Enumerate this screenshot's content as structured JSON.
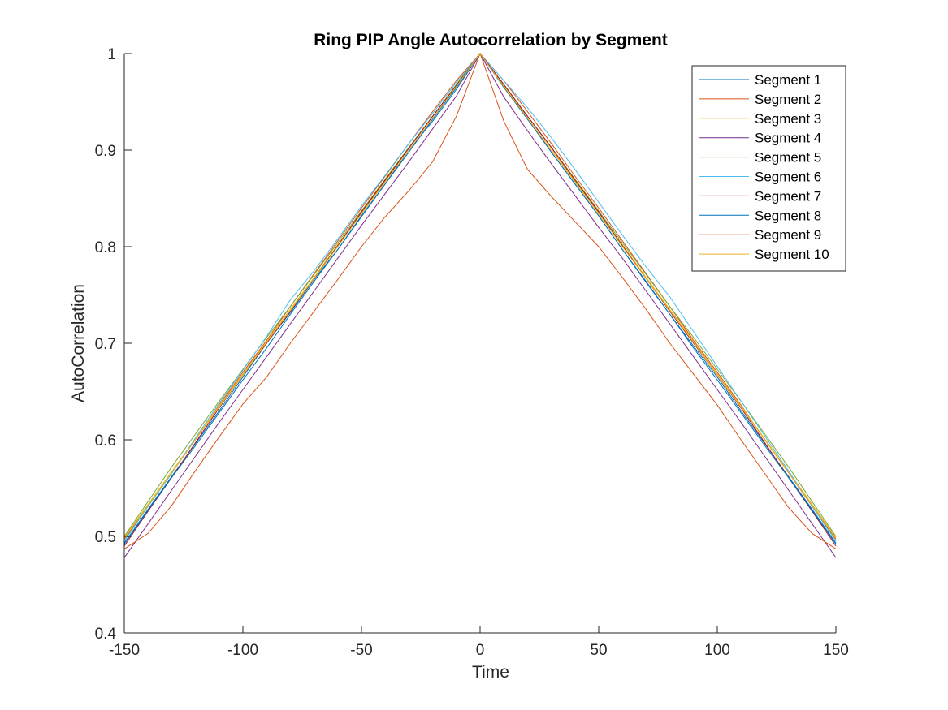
{
  "chart_data": {
    "type": "line",
    "title": "Ring PIP Angle Autocorrelation by Segment",
    "xlabel": "Time",
    "ylabel": "AutoCorrelation",
    "xlim": [
      -150,
      150
    ],
    "ylim": [
      0.4,
      1
    ],
    "xticks": [
      -150,
      -100,
      -50,
      0,
      50,
      100,
      150
    ],
    "xtick_labels": [
      "-150",
      "-100",
      "-50",
      "0",
      "50",
      "100",
      "150"
    ],
    "yticks": [
      0.4,
      0.5,
      0.6,
      0.7,
      0.8,
      0.9,
      1
    ],
    "ytick_labels": [
      "0.4",
      "0.5",
      "0.6",
      "0.7",
      "0.8",
      "0.9",
      "1"
    ],
    "grid": false,
    "legend_position": "top-right",
    "x": [
      -150,
      -140,
      -130,
      -120,
      -110,
      -100,
      -90,
      -80,
      -70,
      -60,
      -50,
      -40,
      -30,
      -20,
      -10,
      0,
      10,
      20,
      30,
      40,
      50,
      60,
      70,
      80,
      90,
      100,
      110,
      120,
      130,
      140,
      150
    ],
    "series": [
      {
        "name": "Segment 1",
        "color": "#0072BD",
        "values": [
          0.493,
          0.528,
          0.562,
          0.596,
          0.63,
          0.665,
          0.7,
          0.732,
          0.766,
          0.797,
          0.831,
          0.865,
          0.9,
          0.93,
          0.963,
          1.0,
          0.968,
          0.933,
          0.898,
          0.865,
          0.832,
          0.797,
          0.763,
          0.73,
          0.697,
          0.665,
          0.63,
          0.596,
          0.562,
          0.528,
          0.493
        ]
      },
      {
        "name": "Segment 2",
        "color": "#D95319",
        "values": [
          0.497,
          0.531,
          0.566,
          0.6,
          0.636,
          0.67,
          0.703,
          0.738,
          0.772,
          0.806,
          0.84,
          0.873,
          0.907,
          0.94,
          0.972,
          1.0,
          0.972,
          0.94,
          0.907,
          0.873,
          0.84,
          0.806,
          0.772,
          0.738,
          0.703,
          0.67,
          0.636,
          0.6,
          0.566,
          0.531,
          0.497
        ]
      },
      {
        "name": "Segment 3",
        "color": "#EDB120",
        "values": [
          0.499,
          0.533,
          0.567,
          0.601,
          0.635,
          0.668,
          0.702,
          0.735,
          0.768,
          0.802,
          0.835,
          0.868,
          0.902,
          0.935,
          0.967,
          1.0,
          0.967,
          0.935,
          0.902,
          0.868,
          0.835,
          0.802,
          0.768,
          0.735,
          0.702,
          0.668,
          0.635,
          0.601,
          0.567,
          0.533,
          0.499
        ]
      },
      {
        "name": "Segment 4",
        "color": "#7E2F8E",
        "values": [
          0.478,
          0.513,
          0.548,
          0.583,
          0.618,
          0.652,
          0.686,
          0.72,
          0.754,
          0.788,
          0.822,
          0.855,
          0.888,
          0.922,
          0.956,
          1.0,
          0.955,
          0.92,
          0.886,
          0.853,
          0.82,
          0.788,
          0.754,
          0.72,
          0.686,
          0.652,
          0.618,
          0.583,
          0.548,
          0.513,
          0.478
        ]
      },
      {
        "name": "Segment 5",
        "color": "#77AC30",
        "values": [
          0.5,
          0.536,
          0.572,
          0.606,
          0.64,
          0.673,
          0.706,
          0.738,
          0.771,
          0.804,
          0.837,
          0.87,
          0.903,
          0.935,
          0.968,
          1.0,
          0.968,
          0.935,
          0.903,
          0.87,
          0.837,
          0.804,
          0.771,
          0.738,
          0.706,
          0.673,
          0.64,
          0.606,
          0.572,
          0.536,
          0.5
        ]
      },
      {
        "name": "Segment 6",
        "color": "#4DBEEE",
        "values": [
          0.495,
          0.531,
          0.565,
          0.602,
          0.638,
          0.672,
          0.707,
          0.745,
          0.775,
          0.808,
          0.842,
          0.874,
          0.907,
          0.938,
          0.97,
          1.0,
          0.972,
          0.944,
          0.913,
          0.88,
          0.846,
          0.812,
          0.779,
          0.748,
          0.712,
          0.676,
          0.64,
          0.604,
          0.568,
          0.531,
          0.495
        ]
      },
      {
        "name": "Segment 7",
        "color": "#A2142F",
        "values": [
          0.49,
          0.526,
          0.561,
          0.597,
          0.633,
          0.667,
          0.7,
          0.733,
          0.767,
          0.801,
          0.836,
          0.869,
          0.902,
          0.935,
          0.967,
          1.0,
          0.968,
          0.935,
          0.903,
          0.869,
          0.836,
          0.801,
          0.767,
          0.733,
          0.7,
          0.667,
          0.633,
          0.597,
          0.561,
          0.526,
          0.49
        ]
      },
      {
        "name": "Segment 8",
        "color": "#0072BD",
        "values": [
          0.492,
          0.527,
          0.561,
          0.594,
          0.628,
          0.662,
          0.695,
          0.73,
          0.764,
          0.797,
          0.832,
          0.865,
          0.898,
          0.932,
          0.965,
          1.0,
          0.965,
          0.932,
          0.898,
          0.865,
          0.832,
          0.797,
          0.764,
          0.73,
          0.695,
          0.662,
          0.628,
          0.594,
          0.561,
          0.527,
          0.492
        ]
      },
      {
        "name": "Segment 9",
        "color": "#D95319",
        "values": [
          0.487,
          0.503,
          0.532,
          0.568,
          0.603,
          0.637,
          0.665,
          0.7,
          0.733,
          0.766,
          0.8,
          0.831,
          0.858,
          0.888,
          0.935,
          1.0,
          0.93,
          0.88,
          0.852,
          0.826,
          0.8,
          0.768,
          0.735,
          0.7,
          0.668,
          0.636,
          0.6,
          0.565,
          0.53,
          0.503,
          0.487
        ]
      },
      {
        "name": "Segment 10",
        "color": "#EDB120",
        "values": [
          0.498,
          0.532,
          0.566,
          0.6,
          0.634,
          0.667,
          0.701,
          0.734,
          0.767,
          0.8,
          0.834,
          0.867,
          0.9,
          0.933,
          0.966,
          1.0,
          0.966,
          0.933,
          0.9,
          0.867,
          0.834,
          0.8,
          0.767,
          0.734,
          0.701,
          0.667,
          0.634,
          0.6,
          0.566,
          0.532,
          0.498
        ]
      }
    ]
  }
}
